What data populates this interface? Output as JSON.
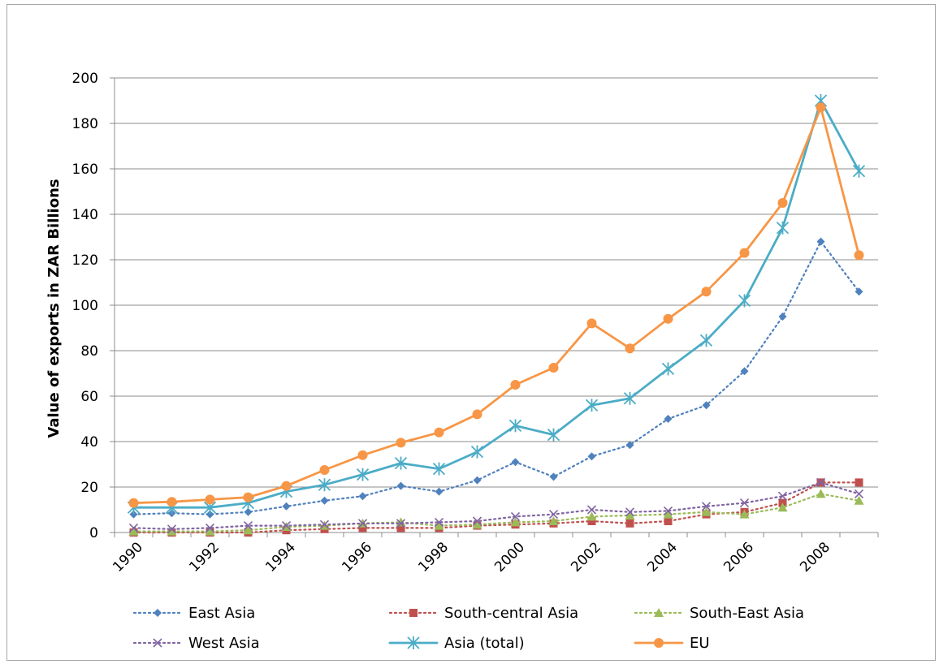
{
  "chart_data": {
    "type": "line",
    "title": "",
    "xlabel": "",
    "ylabel": "Value of exports in ZAR Billions",
    "ylim": [
      0,
      200
    ],
    "y_ticks": [
      "0",
      "20",
      "40",
      "60",
      "80",
      "100",
      "120",
      "140",
      "160",
      "180",
      "200"
    ],
    "x_tick_labels": [
      "1990",
      "1992",
      "1994",
      "1996",
      "1998",
      "2000",
      "2002",
      "2004",
      "2006",
      "2008"
    ],
    "x": [
      1990,
      1991,
      1992,
      1993,
      1994,
      1995,
      1996,
      1997,
      1998,
      1999,
      2000,
      2001,
      2002,
      2003,
      2004,
      2005,
      2006,
      2007,
      2008,
      2009
    ],
    "grid": "horizontal",
    "legend_position": "bottom",
    "series": [
      {
        "name": "East Asia",
        "color": "#4f81bd",
        "dash": "dotted",
        "marker": "diamond",
        "values": [
          8,
          8.5,
          8,
          9,
          11.5,
          14,
          16,
          20.5,
          18,
          23,
          31,
          24.5,
          33.5,
          38.5,
          50,
          56,
          71,
          95,
          128,
          106
        ]
      },
      {
        "name": "South-central Asia",
        "color": "#c0504d",
        "dash": "dotted",
        "marker": "square",
        "values": [
          0,
          0,
          0,
          0,
          1,
          1.5,
          2,
          2,
          2,
          3,
          3.5,
          4,
          5,
          4,
          5,
          8,
          9,
          13,
          22,
          22
        ]
      },
      {
        "name": "South-East Asia",
        "color": "#9bbb59",
        "dash": "dotted",
        "marker": "triangle",
        "values": [
          0.5,
          0.5,
          0.5,
          1,
          2.5,
          3,
          4,
          4.5,
          3,
          3.5,
          4.5,
          5,
          7,
          7.5,
          8,
          9,
          8,
          11,
          17,
          14
        ]
      },
      {
        "name": "West Asia",
        "color": "#8064a2",
        "dash": "dotted",
        "marker": "x",
        "values": [
          2,
          1.5,
          2,
          3,
          3,
          3.5,
          4,
          4,
          4.5,
          5,
          7,
          8,
          10,
          9,
          9.5,
          11.5,
          13,
          16,
          22,
          17
        ]
      },
      {
        "name": "Asia (total)",
        "color": "#4bacc6",
        "dash": "solid",
        "marker": "asterisk",
        "values": [
          11,
          11,
          11,
          13,
          18,
          21,
          25.5,
          30.5,
          28,
          35.5,
          47,
          43,
          56,
          59,
          72,
          84.5,
          102,
          134,
          190,
          159
        ]
      },
      {
        "name": "EU",
        "color": "#f79646",
        "dash": "solid",
        "marker": "circle",
        "values": [
          13,
          13.5,
          14.5,
          15.5,
          20.5,
          27.5,
          34,
          39.5,
          44,
          52,
          65,
          72.5,
          92,
          81,
          94,
          106,
          123,
          145,
          187,
          122
        ]
      }
    ]
  }
}
